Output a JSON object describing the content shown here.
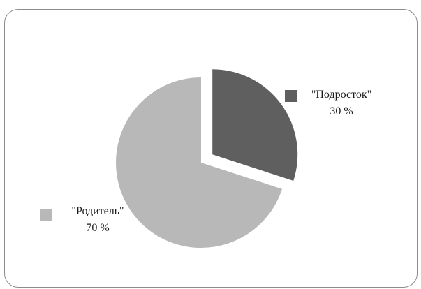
{
  "chart_data": {
    "type": "pie",
    "title": "",
    "categories": [
      "\"Подросток\"",
      "\"Родитель\""
    ],
    "values": [
      30,
      70
    ],
    "value_labels": [
      "30 %",
      "70 %"
    ],
    "colors": [
      "#5f5f5f",
      "#b8b8b8"
    ],
    "exploded": [
      true,
      false
    ],
    "legend": "none",
    "labels_placement": "outside-with-markers"
  }
}
